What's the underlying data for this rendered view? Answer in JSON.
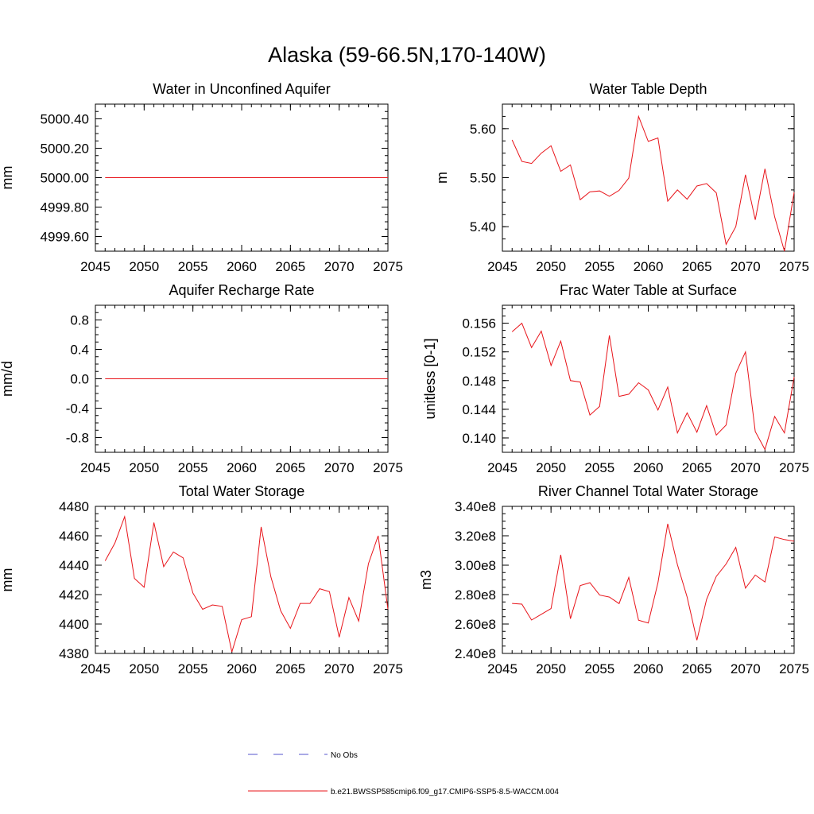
{
  "title": "Alaska (59-66.5N,170-140W)",
  "colors": {
    "model": "#e8141a",
    "obs": "#5555cc",
    "axis": "#000000"
  },
  "legend": {
    "placement": "bottom-center",
    "entries": [
      {
        "label": "No Obs",
        "style": "dashed",
        "color": "#5555cc"
      },
      {
        "label": "b.e21.BWSSP585cmip6.f09_g17.CMIP6-SSP5-8.5-WACCM.004",
        "style": "solid",
        "color": "#e8141a"
      }
    ]
  },
  "chart_data": [
    {
      "type": "line",
      "title": "Water in Unconfined Aquifer",
      "ylabel": "mm",
      "xlim": [
        2045,
        2075
      ],
      "ylim": [
        4999.5,
        5000.5
      ],
      "xticks": [
        2045,
        2050,
        2055,
        2060,
        2065,
        2070,
        2075
      ],
      "yticks": [
        4999.6,
        4999.8,
        5000.0,
        5000.2,
        5000.4
      ],
      "ytick_labels": [
        "4999.60",
        "4999.80",
        "5000.00",
        "5000.20",
        "5000.40"
      ],
      "series": [
        {
          "x": [
            2046,
            2047,
            2048,
            2049,
            2050,
            2051,
            2052,
            2053,
            2054,
            2055,
            2056,
            2057,
            2058,
            2059,
            2060,
            2061,
            2062,
            2063,
            2064,
            2065,
            2066,
            2067,
            2068,
            2069,
            2070,
            2071,
            2072,
            2073,
            2074,
            2075
          ],
          "values": [
            5000,
            5000,
            5000,
            5000,
            5000,
            5000,
            5000,
            5000,
            5000,
            5000,
            5000,
            5000,
            5000,
            5000,
            5000,
            5000,
            5000,
            5000,
            5000,
            5000,
            5000,
            5000,
            5000,
            5000,
            5000,
            5000,
            5000,
            5000,
            5000,
            5000
          ]
        }
      ]
    },
    {
      "type": "line",
      "title": "Water Table Depth",
      "ylabel": "m",
      "xlim": [
        2045,
        2075
      ],
      "ylim": [
        5.35,
        5.65
      ],
      "xticks": [
        2045,
        2050,
        2055,
        2060,
        2065,
        2070,
        2075
      ],
      "yticks": [
        5.4,
        5.5,
        5.6
      ],
      "ytick_labels": [
        "5.40",
        "5.50",
        "5.60"
      ],
      "series": [
        {
          "x": [
            2046,
            2047,
            2048,
            2049,
            2050,
            2051,
            2052,
            2053,
            2054,
            2055,
            2056,
            2057,
            2058,
            2059,
            2060,
            2061,
            2062,
            2063,
            2064,
            2065,
            2066,
            2067,
            2068,
            2069,
            2070,
            2071,
            2072,
            2073,
            2074,
            2075
          ],
          "values": [
            5.577,
            5.533,
            5.529,
            5.55,
            5.565,
            5.513,
            5.526,
            5.455,
            5.471,
            5.473,
            5.462,
            5.474,
            5.499,
            5.625,
            5.574,
            5.581,
            5.452,
            5.475,
            5.456,
            5.483,
            5.488,
            5.469,
            5.364,
            5.4,
            5.506,
            5.414,
            5.518,
            5.42,
            5.35,
            5.47
          ]
        }
      ]
    },
    {
      "type": "line",
      "title": "Aquifer Recharge Rate",
      "ylabel": "mm/d",
      "xlim": [
        2045,
        2075
      ],
      "ylim": [
        -1.0,
        1.0
      ],
      "xticks": [
        2045,
        2050,
        2055,
        2060,
        2065,
        2070,
        2075
      ],
      "yticks": [
        -0.8,
        -0.4,
        0.0,
        0.4,
        0.8
      ],
      "ytick_labels": [
        "-0.8",
        "-0.4",
        "0.0",
        "0.4",
        "0.8"
      ],
      "series": [
        {
          "x": [
            2046,
            2047,
            2048,
            2049,
            2050,
            2051,
            2052,
            2053,
            2054,
            2055,
            2056,
            2057,
            2058,
            2059,
            2060,
            2061,
            2062,
            2063,
            2064,
            2065,
            2066,
            2067,
            2068,
            2069,
            2070,
            2071,
            2072,
            2073,
            2074,
            2075
          ],
          "values": [
            0,
            0,
            0,
            0,
            0,
            0,
            0,
            0,
            0,
            0,
            0,
            0,
            0,
            0,
            0,
            0,
            0,
            0,
            0,
            0,
            0,
            0,
            0,
            0,
            0,
            0,
            0,
            0,
            0,
            0
          ]
        }
      ]
    },
    {
      "type": "line",
      "title": "Frac Water Table at Surface",
      "ylabel": "unitless [0-1]",
      "xlim": [
        2045,
        2075
      ],
      "ylim": [
        0.138,
        0.1585
      ],
      "xticks": [
        2045,
        2050,
        2055,
        2060,
        2065,
        2070,
        2075
      ],
      "yticks": [
        0.14,
        0.144,
        0.148,
        0.152,
        0.156
      ],
      "ytick_labels": [
        "0.140",
        "0.144",
        "0.148",
        "0.152",
        "0.156"
      ],
      "series": [
        {
          "x": [
            2046,
            2047,
            2048,
            2049,
            2050,
            2051,
            2052,
            2053,
            2054,
            2055,
            2056,
            2057,
            2058,
            2059,
            2060,
            2061,
            2062,
            2063,
            2064,
            2065,
            2066,
            2067,
            2068,
            2069,
            2070,
            2071,
            2072,
            2073,
            2074,
            2075
          ],
          "values": [
            0.1548,
            0.156,
            0.1526,
            0.1549,
            0.1501,
            0.1535,
            0.148,
            0.1478,
            0.1432,
            0.1444,
            0.1543,
            0.1458,
            0.1461,
            0.1477,
            0.1467,
            0.1439,
            0.1471,
            0.1407,
            0.1435,
            0.1408,
            0.1445,
            0.1404,
            0.1418,
            0.149,
            0.152,
            0.1409,
            0.1384,
            0.143,
            0.1407,
            0.1485
          ]
        }
      ]
    },
    {
      "type": "line",
      "title": "Total Water Storage",
      "ylabel": "mm",
      "xlim": [
        2045,
        2075
      ],
      "ylim": [
        4380,
        4480
      ],
      "xticks": [
        2045,
        2050,
        2055,
        2060,
        2065,
        2070,
        2075
      ],
      "yticks": [
        4380,
        4400,
        4420,
        4440,
        4460,
        4480
      ],
      "ytick_labels": [
        "4380",
        "4400",
        "4420",
        "4440",
        "4460",
        "4480"
      ],
      "series": [
        {
          "x": [
            2046,
            2047,
            2048,
            2049,
            2050,
            2051,
            2052,
            2053,
            2054,
            2055,
            2056,
            2057,
            2058,
            2059,
            2060,
            2061,
            2062,
            2063,
            2064,
            2065,
            2066,
            2067,
            2068,
            2069,
            2070,
            2071,
            2072,
            2073,
            2074,
            2075
          ],
          "values": [
            4443,
            4455,
            4473,
            4431,
            4425,
            4469,
            4439,
            4449,
            4445,
            4421,
            4410,
            4413,
            4412,
            4381,
            4403,
            4405,
            4466,
            4432,
            4409,
            4397,
            4414,
            4414,
            4424,
            4422,
            4391,
            4418,
            4402,
            4441,
            4460,
            4410
          ]
        }
      ]
    },
    {
      "type": "line",
      "title": "River Channel Total Water Storage",
      "ylabel": "m3",
      "xlim": [
        2045,
        2075
      ],
      "ylim": [
        240000000,
        340000000
      ],
      "xticks": [
        2045,
        2050,
        2055,
        2060,
        2065,
        2070,
        2075
      ],
      "yticks": [
        240000000,
        260000000,
        280000000,
        300000000,
        320000000,
        340000000
      ],
      "ytick_labels": [
        "2.40e8",
        "2.60e8",
        "2.80e8",
        "3.00e8",
        "3.20e8",
        "3.40e8"
      ],
      "series": [
        {
          "x": [
            2046,
            2047,
            2048,
            2049,
            2050,
            2051,
            2052,
            2053,
            2054,
            2055,
            2056,
            2057,
            2058,
            2059,
            2060,
            2061,
            2062,
            2063,
            2064,
            2065,
            2066,
            2067,
            2068,
            2069,
            2070,
            2071,
            2072,
            2073,
            2074,
            2075
          ],
          "values": [
            274000000,
            273500000,
            262700000,
            266600000,
            270500000,
            307000000,
            263600000,
            286100000,
            288100000,
            279700000,
            278300000,
            273900000,
            291700000,
            262600000,
            260700000,
            288100000,
            328100000,
            300300000,
            278300000,
            249000000,
            276800000,
            292400000,
            300800000,
            312100000,
            284400000,
            293300000,
            288600000,
            319200000,
            317400000,
            316400000
          ]
        }
      ]
    }
  ]
}
